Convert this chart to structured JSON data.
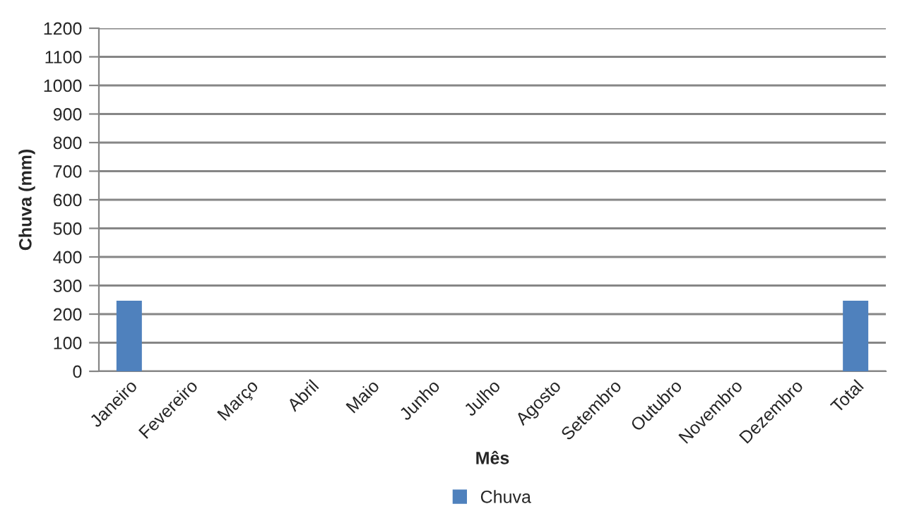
{
  "chart_data": {
    "type": "bar",
    "xlabel": "Mês",
    "ylabel": "Chuva (mm)",
    "categories": [
      "Janeiro",
      "Fevereiro",
      "Março",
      "Abril",
      "Maio",
      "Junho",
      "Julho",
      "Agosto",
      "Setembro",
      "Outubro",
      "Novembro",
      "Dezembro",
      "Total"
    ],
    "series": [
      {
        "name": "Chuva",
        "color": "#4f81bd",
        "values": [
          247,
          null,
          null,
          null,
          null,
          null,
          null,
          null,
          null,
          null,
          null,
          null,
          247
        ]
      }
    ],
    "ylim": [
      0,
      1200
    ],
    "yticks": [
      0,
      100,
      200,
      300,
      400,
      500,
      600,
      700,
      800,
      900,
      1000,
      1100,
      1200
    ],
    "grid": "y",
    "legend": "bottom"
  }
}
